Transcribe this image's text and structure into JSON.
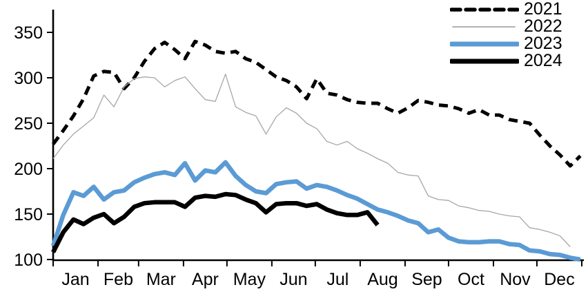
{
  "chart_data": {
    "type": "line",
    "title": "",
    "xlabel": "",
    "ylabel": "",
    "x_unit": "week-of-year",
    "ylim": [
      100,
      375
    ],
    "yticks": [
      100,
      150,
      200,
      250,
      300,
      350
    ],
    "grid": false,
    "legend_position": "top-right",
    "months": [
      "Jan",
      "Feb",
      "Mar",
      "Apr",
      "May",
      "Jun",
      "Jul",
      "Aug",
      "Sep",
      "Oct",
      "Nov",
      "Dec"
    ],
    "month_start_days": [
      0,
      31,
      59,
      90,
      120,
      151,
      181,
      212,
      243,
      273,
      304,
      334,
      365
    ],
    "series": [
      {
        "name": "2021",
        "color": "#000000",
        "style": "dashed",
        "width": 5,
        "values": [
          227,
          242,
          258,
          277,
          302,
          307,
          306,
          288,
          300,
          318,
          332,
          339,
          331,
          321,
          340,
          336,
          329,
          327,
          329,
          321,
          317,
          309,
          301,
          297,
          290,
          277,
          299,
          283,
          281,
          276,
          273,
          272,
          272,
          266,
          261,
          267,
          275,
          273,
          270,
          269,
          266,
          261,
          265,
          259,
          259,
          254,
          252,
          250,
          237,
          225,
          215,
          203,
          214
        ]
      },
      {
        "name": "2022",
        "color": "#a6a6a6",
        "style": "solid",
        "width": 1.3,
        "values": [
          211,
          226,
          238,
          247,
          256,
          281,
          268,
          290,
          299,
          301,
          300,
          290,
          297,
          301,
          288,
          276,
          274,
          304,
          268,
          262,
          258,
          238,
          257,
          267,
          261,
          250,
          244,
          230,
          226,
          230,
          222,
          217,
          211,
          206,
          196,
          193,
          192,
          170,
          166,
          165,
          159,
          157,
          154,
          153,
          150,
          148,
          147,
          135,
          133,
          130,
          126,
          114
        ]
      },
      {
        "name": "2023",
        "color": "#5b9bd5",
        "style": "solid",
        "width": 6.5,
        "values": [
          115,
          149,
          174,
          170,
          180,
          166,
          174,
          176,
          185,
          190,
          194,
          196,
          193,
          206,
          187,
          198,
          196,
          207,
          192,
          182,
          175,
          173,
          183,
          185,
          186,
          178,
          182,
          180,
          176,
          171,
          167,
          161,
          155,
          152,
          148,
          143,
          140,
          130,
          133,
          124,
          120,
          119,
          119,
          120,
          120,
          117,
          116,
          110,
          109,
          106,
          105,
          102,
          100
        ]
      },
      {
        "name": "2024",
        "color": "#000000",
        "style": "solid",
        "width": 6.5,
        "values": [
          108,
          130,
          144,
          139,
          146,
          150,
          140,
          147,
          158,
          162,
          163,
          163,
          163,
          158,
          168,
          170,
          169,
          172,
          171,
          166,
          162,
          152,
          161,
          162,
          162,
          159,
          161,
          155,
          151,
          149,
          149,
          152,
          138
        ]
      }
    ]
  }
}
